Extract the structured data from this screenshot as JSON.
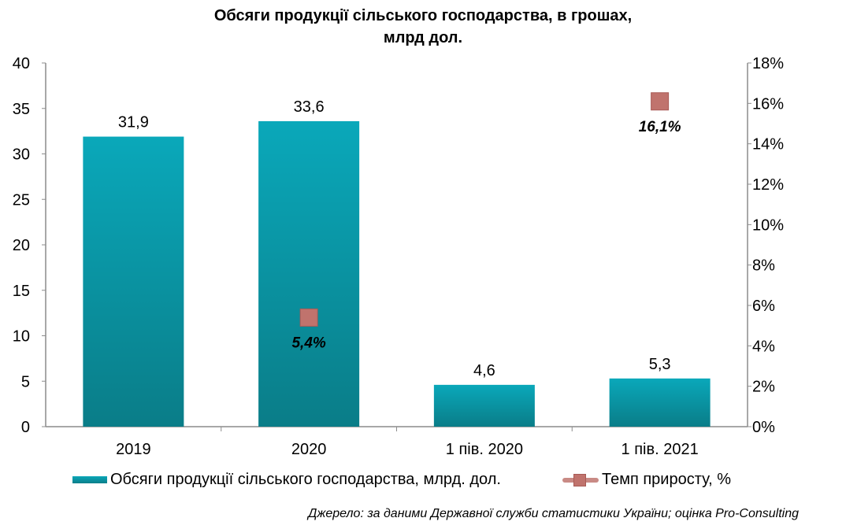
{
  "chart_data": {
    "type": "bar+line",
    "title_lines": [
      "Обсяги продукції сільського господарства, в грошах,",
      "млрд дол."
    ],
    "categories": [
      "2019",
      "2020",
      "1 пів. 2020",
      "1 пів. 2021"
    ],
    "series": [
      {
        "name": "Обсяги продукції сільського господарства, млрд.  дол.",
        "type": "bar",
        "axis": "left",
        "values": [
          31.9,
          33.6,
          4.6,
          5.3
        ],
        "labels": [
          "31,9",
          "33,6",
          "4,6",
          "5,3"
        ],
        "color": "#0aa6b8"
      },
      {
        "name": "Темп  приросту, %",
        "type": "marker",
        "axis": "right",
        "values": [
          null,
          5.4,
          null,
          16.1
        ],
        "labels": [
          null,
          "5,4%",
          null,
          "16,1%"
        ],
        "color": "#c0736d"
      }
    ],
    "y_left": {
      "range": [
        0,
        40
      ],
      "ticks": [
        0,
        5,
        10,
        15,
        20,
        25,
        30,
        35,
        40
      ],
      "tick_labels": [
        "0",
        "5",
        "10",
        "15",
        "20",
        "25",
        "30",
        "35",
        "40"
      ]
    },
    "y_right": {
      "range": [
        0,
        18
      ],
      "ticks": [
        0,
        2,
        4,
        6,
        8,
        10,
        12,
        14,
        16,
        18
      ],
      "tick_labels": [
        "0%",
        "2%",
        "4%",
        "6%",
        "8%",
        "10%",
        "12%",
        "14%",
        "16%",
        "18%"
      ]
    },
    "grid": false,
    "legend_position": "bottom"
  },
  "legend": {
    "bar_label": "Обсяги продукції сільського господарства, млрд.  дол.",
    "line_label": "Темп  приросту, %"
  },
  "source_note": "Джерело: за даними Державної служби статистики України; оцінка Pro-Consulting"
}
